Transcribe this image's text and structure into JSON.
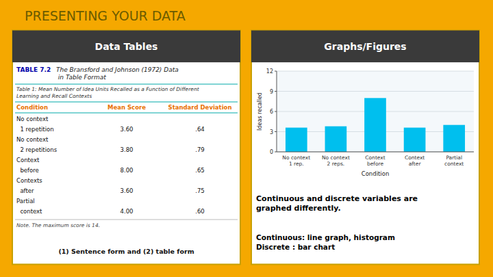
{
  "page": {
    "title": "PRESENTING YOUR DATA",
    "panel_headers": [
      "Data Tables",
      "Graphs/Figures"
    ],
    "table": {
      "label": "TABLE 7.2",
      "caption": "The Bransford and Johnson (1972) Data\n in Table Format",
      "subtitle": "Table 1: Mean Number of Idea Units Recalled as a Function of Different\nLearning and Recall Contexts",
      "headers": [
        "Condition",
        "Mean Score",
        "Standard Deviation"
      ],
      "rows": [
        [
          "No context",
          null,
          null
        ],
        [
          "  1 repetition",
          "3.60",
          ".64"
        ],
        [
          "No context",
          null,
          null
        ],
        [
          "  2 repetitions",
          "3.80",
          ".79"
        ],
        [
          "Context",
          null,
          null
        ],
        [
          "  before",
          "8.00",
          ".65"
        ],
        [
          "Contexts",
          null,
          null
        ],
        [
          "  after",
          "3.60",
          ".75"
        ],
        [
          "Partial",
          null,
          null
        ],
        [
          "  context",
          "4.00",
          ".60"
        ]
      ],
      "note": "Note. The maximum score is 14.",
      "footer": "(1) Sentence form and (2) table form"
    },
    "notes": [
      "Continuous and discrete variables are\ngraphed differently.",
      "Continuous: line graph, histogram\nDiscrete : bar chart"
    ]
  },
  "chart_data": {
    "type": "bar",
    "xlabel": "Condition",
    "ylabel": "Ideas recalled",
    "categories": [
      "No context\n1 rep.",
      "No context\n2 reps.",
      "Context\nbefore",
      "Context\nafter",
      "Partial\ncontext"
    ],
    "values": [
      3.6,
      3.8,
      8.0,
      3.6,
      4.0
    ],
    "color": "#00BFEE",
    "ylim": [
      0,
      12
    ],
    "yticks": [
      0,
      3,
      6,
      9,
      12
    ],
    "grid": true
  }
}
